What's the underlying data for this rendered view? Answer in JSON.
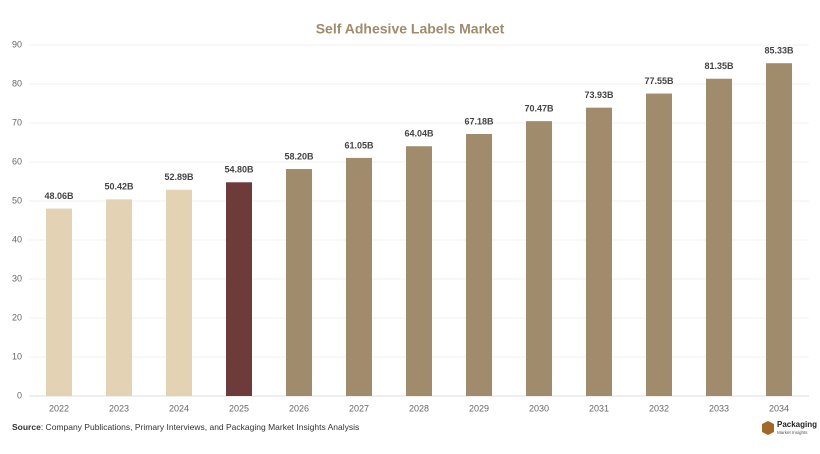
{
  "chart_data": {
    "type": "bar",
    "title": "Self Adhesive Labels Market",
    "categories": [
      "2022",
      "2023",
      "2024",
      "2025",
      "2026",
      "2027",
      "2028",
      "2029",
      "2030",
      "2031",
      "2032",
      "2033",
      "2034"
    ],
    "values": [
      48.06,
      50.42,
      52.89,
      54.8,
      58.2,
      61.05,
      64.04,
      67.18,
      70.47,
      73.93,
      77.55,
      81.35,
      85.33
    ],
    "value_labels": [
      "48.06B",
      "50.42B",
      "52.89B",
      "54.80B",
      "58.20B",
      "61.05B",
      "64.04B",
      "67.18B",
      "70.47B",
      "73.93B",
      "77.55B",
      "81.35B",
      "85.33B"
    ],
    "colors": [
      "#e3d2b4",
      "#e3d2b4",
      "#e3d2b4",
      "#6e3b3b",
      "#a08b6c",
      "#a08b6c",
      "#a08b6c",
      "#a08b6c",
      "#a08b6c",
      "#a08b6c",
      "#a08b6c",
      "#a08b6c",
      "#a08b6c"
    ],
    "ylim": [
      0,
      90
    ],
    "yticks": [
      0,
      10,
      20,
      30,
      40,
      50,
      60,
      70,
      80,
      90
    ],
    "grid": true
  },
  "source": {
    "label": "Source",
    "text": ": Company Publications, Primary Interviews, and Packaging Market Insights Analysis"
  },
  "logo": {
    "name": "Packaging",
    "tagline": "Market Insights"
  }
}
